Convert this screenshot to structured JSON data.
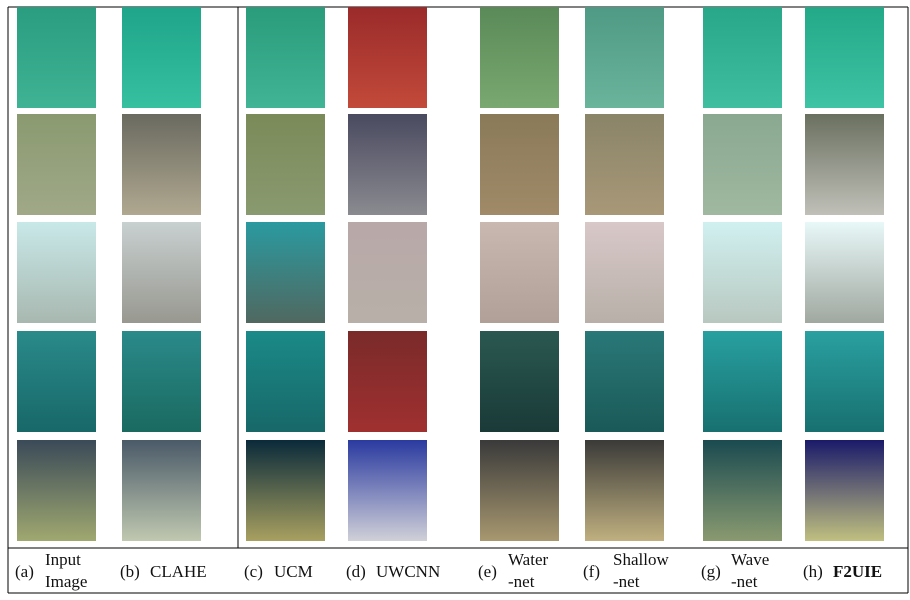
{
  "figure": {
    "captions": [
      {
        "label": "(a)",
        "lines": [
          "Input",
          "Image"
        ]
      },
      {
        "label": "(b)",
        "lines": [
          "CLAHE"
        ]
      },
      {
        "label": "(c)",
        "lines": [
          "UCM"
        ]
      },
      {
        "label": "(d)",
        "lines": [
          "UWCNN"
        ]
      },
      {
        "label": "(e)",
        "lines": [
          "Water",
          "-net"
        ]
      },
      {
        "label": "(f)",
        "lines": [
          "Shallow",
          "-net"
        ]
      },
      {
        "label": "(g)",
        "lines": [
          "Wave",
          "-net"
        ]
      },
      {
        "label": "(h)",
        "lines": [
          "F2UIE"
        ],
        "bold": true
      }
    ]
  }
}
